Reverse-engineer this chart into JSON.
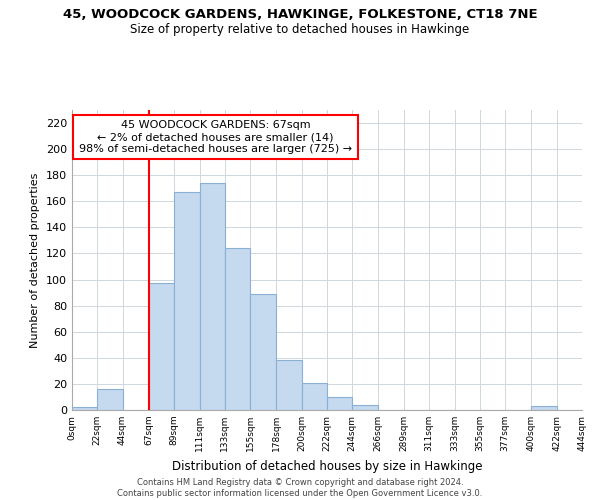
{
  "title": "45, WOODCOCK GARDENS, HAWKINGE, FOLKESTONE, CT18 7NE",
  "subtitle": "Size of property relative to detached houses in Hawkinge",
  "xlabel": "Distribution of detached houses by size in Hawkinge",
  "ylabel": "Number of detached properties",
  "bar_color": "#c5d9ef",
  "bar_edge_color": "#8ab0d4",
  "vline_x": 67,
  "vline_color": "red",
  "annotation_lines": [
    "45 WOODCOCK GARDENS: 67sqm",
    "← 2% of detached houses are smaller (14)",
    "98% of semi-detached houses are larger (725) →"
  ],
  "bin_edges": [
    0,
    22,
    44,
    67,
    89,
    111,
    133,
    155,
    178,
    200,
    222,
    244,
    266,
    289,
    311,
    333,
    355,
    377,
    400,
    422,
    444
  ],
  "bin_labels": [
    "0sqm",
    "22sqm",
    "44sqm",
    "67sqm",
    "89sqm",
    "111sqm",
    "133sqm",
    "155sqm",
    "178sqm",
    "200sqm",
    "222sqm",
    "244sqm",
    "266sqm",
    "289sqm",
    "311sqm",
    "333sqm",
    "355sqm",
    "377sqm",
    "400sqm",
    "422sqm",
    "444sqm"
  ],
  "counts": [
    2,
    16,
    0,
    97,
    167,
    174,
    124,
    89,
    38,
    21,
    10,
    4,
    0,
    0,
    0,
    0,
    0,
    0,
    3,
    0
  ],
  "ylim": [
    0,
    230
  ],
  "yticks": [
    0,
    20,
    40,
    60,
    80,
    100,
    120,
    140,
    160,
    180,
    200,
    220
  ],
  "footer1": "Contains HM Land Registry data © Crown copyright and database right 2024.",
  "footer2": "Contains public sector information licensed under the Open Government Licence v3.0.",
  "background_color": "#ffffff",
  "grid_color": "#d0d8e0"
}
